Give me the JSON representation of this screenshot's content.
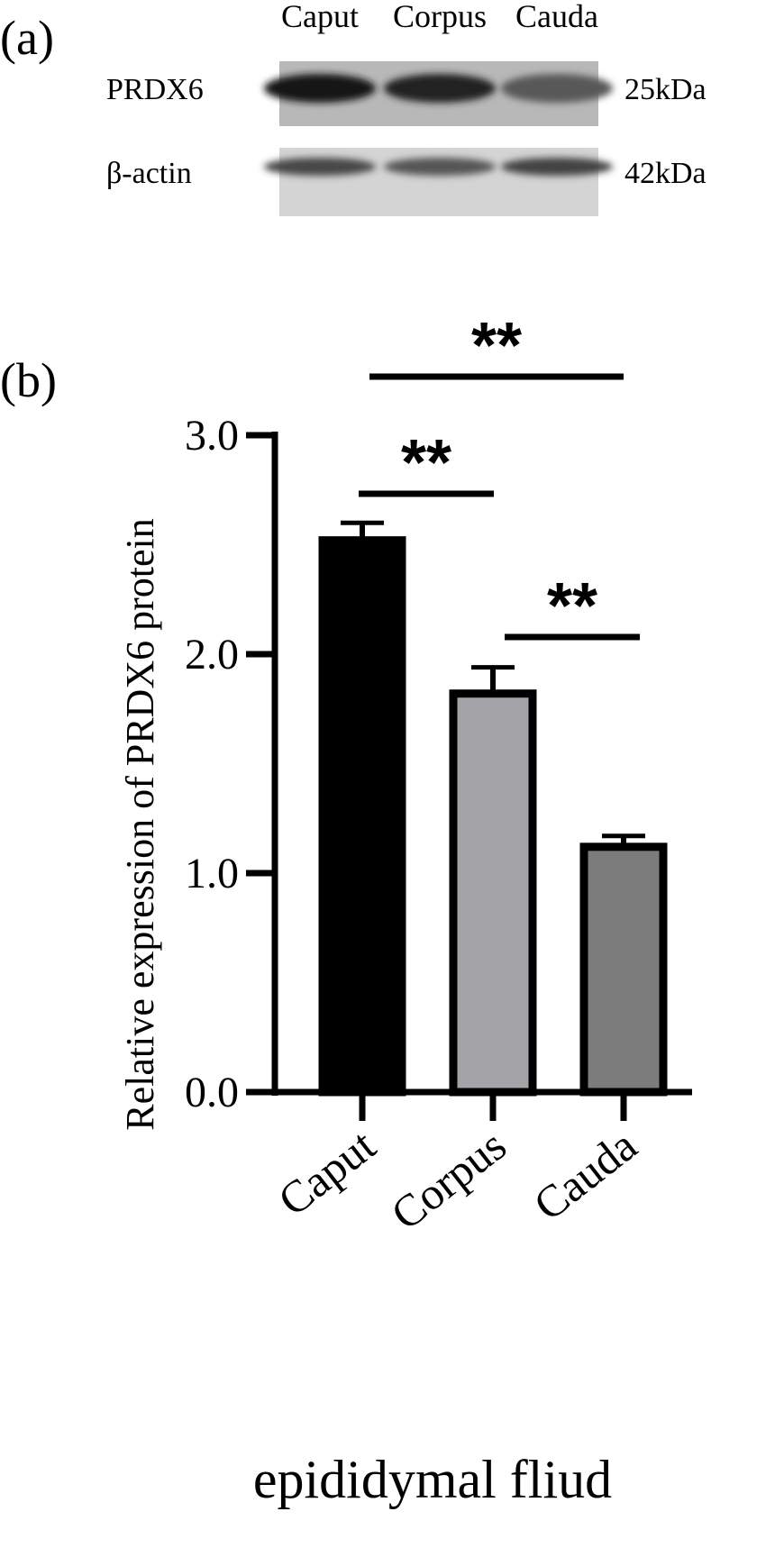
{
  "panel_a": {
    "label": "(a)",
    "lanes": [
      "Caput",
      "Corpus",
      "Cauda"
    ],
    "rows": [
      {
        "protein": "PRDX6",
        "size": "25kDa",
        "intensity": [
          1.0,
          0.92,
          0.62
        ]
      },
      {
        "protein": "β-actin",
        "size": "42kDa",
        "intensity": [
          0.72,
          0.64,
          0.74
        ]
      }
    ]
  },
  "panel_b": {
    "label": "(b)",
    "significance": [
      "**",
      "**",
      "**"
    ]
  },
  "chart_data": {
    "type": "bar",
    "categories": [
      "Caput",
      "Corpus",
      "Cauda"
    ],
    "values": [
      2.52,
      1.82,
      1.12
    ],
    "errors": [
      0.08,
      0.12,
      0.05
    ],
    "bar_colors": [
      "#000000",
      "#a4a4a8",
      "#7c7c7c"
    ],
    "ylabel": "Relative expression of PRDX6 protein",
    "xlabel": "epididymal fliud",
    "ylim": [
      0,
      3.0
    ],
    "yticks": [
      0.0,
      1.0,
      2.0,
      3.0
    ],
    "ytick_labels": [
      "0.0",
      "1.0",
      "2.0",
      "3.0"
    ],
    "comparisons": [
      {
        "from": "Caput",
        "to": "Corpus",
        "label": "**"
      },
      {
        "from": "Corpus",
        "to": "Cauda",
        "label": "**"
      },
      {
        "from": "Caput",
        "to": "Cauda",
        "label": "**"
      }
    ]
  }
}
